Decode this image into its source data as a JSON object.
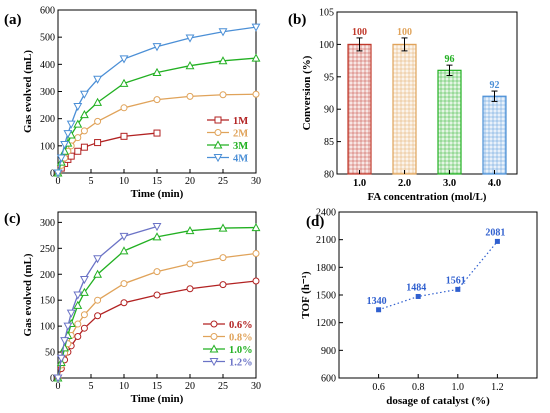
{
  "colors": {
    "red": "#b22222",
    "orange": "#e0a35a",
    "green": "#22b022",
    "blue": "#4b8fd6",
    "purple": "#6b73c6",
    "dotblue": "#2f5fcf"
  },
  "panels": {
    "a": "(a)",
    "b": "(b)",
    "c": "(c)",
    "d": "(d)"
  },
  "chart_data": [
    {
      "panel": "a",
      "type": "line",
      "xlabel": "Time (min)",
      "ylabel": "Gas evolved (mL)",
      "xlim": [
        0,
        30
      ],
      "ylim": [
        0,
        600
      ],
      "xticks": [
        0,
        5,
        10,
        15,
        20,
        25,
        30
      ],
      "yticks": [
        0,
        100,
        200,
        300,
        400,
        500,
        600
      ],
      "legend": "bottom-right",
      "series": [
        {
          "name": "1M",
          "marker": "square",
          "color": "#b22222",
          "x": [
            0,
            0.5,
            1,
            1.5,
            2,
            3,
            4,
            6,
            10,
            15
          ],
          "y": [
            0,
            18,
            35,
            50,
            62,
            80,
            95,
            112,
            135,
            147
          ]
        },
        {
          "name": "2M",
          "marker": "circle",
          "color": "#e0a35a",
          "x": [
            0,
            0.5,
            1,
            1.5,
            2,
            3,
            4,
            6,
            10,
            15,
            20,
            25,
            30
          ],
          "y": [
            0,
            28,
            55,
            80,
            100,
            130,
            155,
            190,
            240,
            270,
            282,
            288,
            290
          ]
        },
        {
          "name": "3M",
          "marker": "triangle-up",
          "color": "#22b022",
          "x": [
            0,
            0.5,
            1,
            1.5,
            2,
            3,
            4,
            6,
            10,
            15,
            20,
            25,
            30
          ],
          "y": [
            0,
            40,
            80,
            110,
            140,
            180,
            215,
            260,
            330,
            370,
            395,
            413,
            423
          ]
        },
        {
          "name": "4M",
          "marker": "triangle-down",
          "color": "#4b8fd6",
          "x": [
            0,
            0.5,
            1,
            1.5,
            2,
            3,
            4,
            6,
            10,
            15,
            20,
            25,
            30
          ],
          "y": [
            0,
            55,
            105,
            145,
            180,
            245,
            290,
            345,
            420,
            465,
            497,
            520,
            537
          ]
        }
      ]
    },
    {
      "panel": "b",
      "type": "bar",
      "xlabel": "FA concentration (mol/L)",
      "ylabel": "Conversion (%)",
      "categories": [
        "1.0",
        "2.0",
        "3.0",
        "4.0"
      ],
      "values": [
        100,
        100,
        96,
        92
      ],
      "errors": [
        1,
        1,
        0.8,
        0.8
      ],
      "data_labels": [
        "100",
        "100",
        "96",
        "92"
      ],
      "colors": [
        "#c0392b",
        "#e0a35a",
        "#22b022",
        "#4b8fd6"
      ],
      "ylim": [
        80,
        105
      ],
      "yticks": [
        80,
        85,
        90,
        95,
        100,
        105
      ]
    },
    {
      "panel": "c",
      "type": "line",
      "xlabel": "Time (min)",
      "ylabel": "Gas evolved (mL)",
      "xlim": [
        0,
        30
      ],
      "ylim": [
        0,
        320
      ],
      "xticks": [
        0,
        5,
        10,
        15,
        20,
        25,
        30
      ],
      "yticks": [
        0,
        50,
        100,
        150,
        200,
        250,
        300
      ],
      "legend": "bottom-right",
      "series": [
        {
          "name": "0.6%",
          "marker": "circle",
          "color": "#b22222",
          "x": [
            0,
            0.5,
            1,
            1.5,
            2,
            3,
            4,
            6,
            10,
            15,
            20,
            25,
            30
          ],
          "y": [
            0,
            18,
            35,
            50,
            62,
            80,
            96,
            120,
            145,
            160,
            172,
            180,
            187
          ]
        },
        {
          "name": "0.8%",
          "marker": "circle",
          "color": "#e0a35a",
          "x": [
            0,
            0.5,
            1,
            1.5,
            2,
            3,
            4,
            6,
            10,
            15,
            20,
            25,
            30
          ],
          "y": [
            0,
            25,
            48,
            66,
            82,
            104,
            122,
            150,
            182,
            205,
            220,
            232,
            240
          ]
        },
        {
          "name": "1.0%",
          "marker": "triangle-up",
          "color": "#22b022",
          "x": [
            0,
            0.5,
            1,
            1.5,
            2,
            3,
            4,
            6,
            10,
            15,
            20,
            25,
            30
          ],
          "y": [
            0,
            30,
            58,
            82,
            105,
            140,
            165,
            200,
            245,
            272,
            284,
            289,
            290
          ]
        },
        {
          "name": "1.2%",
          "marker": "triangle-down",
          "color": "#6b73c6",
          "x": [
            0,
            0.5,
            1,
            1.5,
            2,
            3,
            4,
            6,
            10,
            15
          ],
          "y": [
            0,
            38,
            72,
            100,
            125,
            160,
            190,
            230,
            273,
            292
          ]
        }
      ]
    },
    {
      "panel": "d",
      "type": "scatter",
      "xlabel": "dosage of catalyst (%)",
      "ylabel": "TOF (h⁻¹)",
      "x": [
        0.6,
        0.8,
        1.0,
        1.2
      ],
      "y": [
        1340,
        1484,
        1561,
        2081
      ],
      "data_labels": [
        "1340",
        "1484",
        "1561",
        "2081"
      ],
      "xlim": [
        0.4,
        1.4
      ],
      "ylim": [
        600,
        2400
      ],
      "xticks": [
        0.6,
        0.8,
        1.0,
        1.2
      ],
      "xticklabels": [
        "0.6",
        "0.8",
        "1.0",
        "1.2"
      ],
      "yticks": [
        600,
        900,
        1200,
        1500,
        1800,
        2100,
        2400
      ],
      "color": "#2f5fcf",
      "line": "dotted"
    }
  ]
}
